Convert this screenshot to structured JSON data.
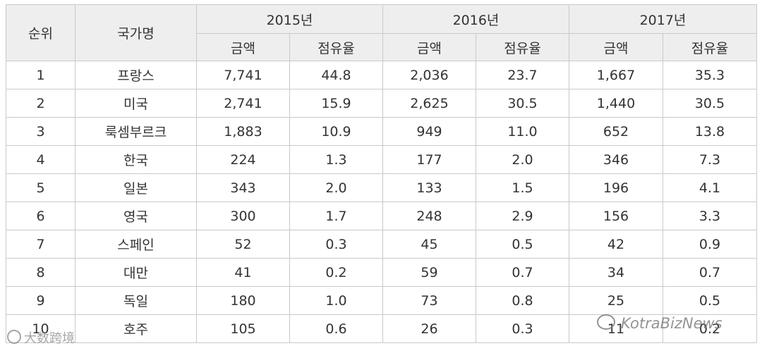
{
  "table": {
    "header": {
      "rank": "순위",
      "country": "국가명",
      "years": [
        "2015년",
        "2016년",
        "2017년"
      ],
      "amount": "금액",
      "share": "점유율"
    },
    "rows": [
      {
        "rank": "1",
        "country": "프랑스",
        "y2015_amount": "7,741",
        "y2015_share": "44.8",
        "y2016_amount": "2,036",
        "y2016_share": "23.7",
        "y2017_amount": "1,667",
        "y2017_share": "35.3"
      },
      {
        "rank": "2",
        "country": "미국",
        "y2015_amount": "2,741",
        "y2015_share": "15.9",
        "y2016_amount": "2,625",
        "y2016_share": "30.5",
        "y2017_amount": "1,440",
        "y2017_share": "30.5"
      },
      {
        "rank": "3",
        "country": "룩셈부르크",
        "y2015_amount": "1,883",
        "y2015_share": "10.9",
        "y2016_amount": "949",
        "y2016_share": "11.0",
        "y2017_amount": "652",
        "y2017_share": "13.8"
      },
      {
        "rank": "4",
        "country": "한국",
        "y2015_amount": "224",
        "y2015_share": "1.3",
        "y2016_amount": "177",
        "y2016_share": "2.0",
        "y2017_amount": "346",
        "y2017_share": "7.3"
      },
      {
        "rank": "5",
        "country": "일본",
        "y2015_amount": "343",
        "y2015_share": "2.0",
        "y2016_amount": "133",
        "y2016_share": "1.5",
        "y2017_amount": "196",
        "y2017_share": "4.1"
      },
      {
        "rank": "6",
        "country": "영국",
        "y2015_amount": "300",
        "y2015_share": "1.7",
        "y2016_amount": "248",
        "y2016_share": "2.9",
        "y2017_amount": "156",
        "y2017_share": "3.3"
      },
      {
        "rank": "7",
        "country": "스페인",
        "y2015_amount": "52",
        "y2015_share": "0.3",
        "y2016_amount": "45",
        "y2016_share": "0.5",
        "y2017_amount": "42",
        "y2017_share": "0.9"
      },
      {
        "rank": "8",
        "country": "대만",
        "y2015_amount": "41",
        "y2015_share": "0.2",
        "y2016_amount": "59",
        "y2016_share": "0.7",
        "y2017_amount": "34",
        "y2017_share": "0.7"
      },
      {
        "rank": "9",
        "country": "독일",
        "y2015_amount": "180",
        "y2015_share": "1.0",
        "y2016_amount": "73",
        "y2016_share": "0.8",
        "y2017_amount": "25",
        "y2017_share": "0.5"
      },
      {
        "rank": "10",
        "country": "호주",
        "y2015_amount": "105",
        "y2015_share": "0.6",
        "y2016_amount": "26",
        "y2016_share": "0.3",
        "y2017_amount": "11",
        "y2017_share": "0.2"
      }
    ]
  },
  "watermarks": {
    "left": "大数跨境",
    "right": "KotraBizNews"
  }
}
